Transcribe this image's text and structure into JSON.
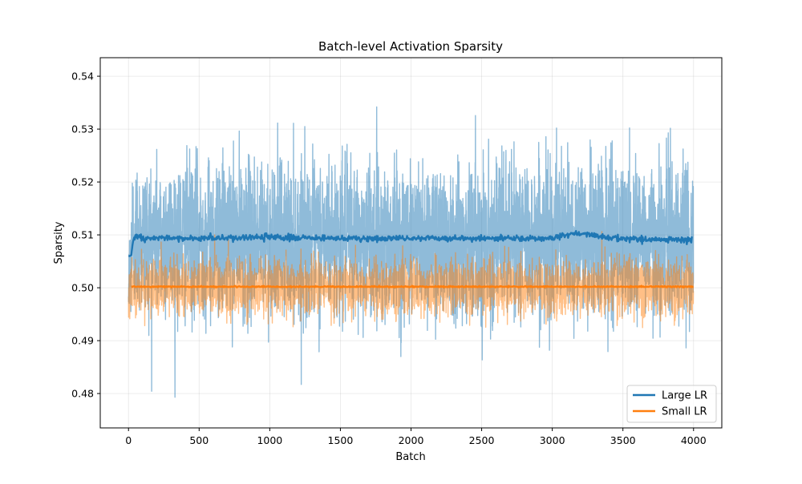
{
  "chart_data": {
    "type": "line",
    "title": "Batch-level Activation Sparsity",
    "xlabel": "Batch",
    "ylabel": "Sparsity",
    "xlim": [
      -200,
      4200
    ],
    "ylim": [
      0.4735,
      0.5435
    ],
    "xticks": [
      0,
      500,
      1000,
      1500,
      2000,
      2500,
      3000,
      3500,
      4000
    ],
    "yticks": [
      0.48,
      0.49,
      0.5,
      0.51,
      0.52,
      0.53,
      0.54
    ],
    "xtick_labels": [
      "0",
      "500",
      "1000",
      "1500",
      "2000",
      "2500",
      "3000",
      "3500",
      "4000"
    ],
    "ytick_labels": [
      "0.48",
      "0.49",
      "0.50",
      "0.51",
      "0.52",
      "0.53",
      "0.54"
    ],
    "grid": true,
    "legend_position": "lower right",
    "n_batches": 4000,
    "series": [
      {
        "name": "Large LR",
        "color": "#1f77b4",
        "raw": {
          "mean": 0.5095,
          "range": [
            0.4767,
            0.541
          ],
          "alpha": 0.5
        },
        "smoothed": {
          "start": 0.506,
          "level": 0.5093,
          "x": [
            0,
            10,
            20,
            30,
            40,
            60,
            100,
            200,
            500,
            1000,
            1500,
            2000,
            2500,
            3000,
            3160,
            3500,
            3990
          ],
          "y": [
            0.506,
            0.506,
            0.5062,
            0.5085,
            0.5095,
            0.5098,
            0.5094,
            0.5094,
            0.5093,
            0.5095,
            0.5093,
            0.5094,
            0.5093,
            0.5094,
            0.5103,
            0.5093,
            0.509
          ]
        }
      },
      {
        "name": "Small LR",
        "color": "#ff7f0e",
        "raw": {
          "mean": 0.5002,
          "range": [
            0.4912,
            0.5108
          ],
          "alpha": 0.5
        },
        "smoothed": {
          "level": 0.5002,
          "x": [
            20,
            4000
          ],
          "y": [
            0.5002,
            0.5002
          ]
        }
      }
    ]
  }
}
